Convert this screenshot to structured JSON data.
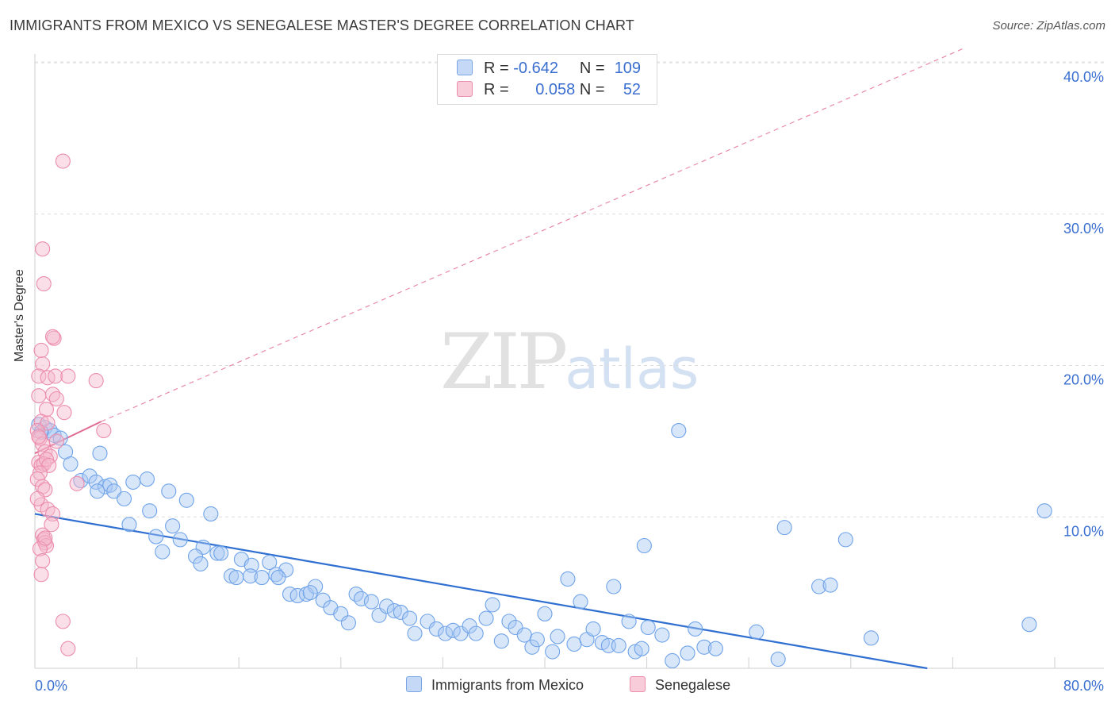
{
  "header": {
    "title": "IMMIGRANTS FROM MEXICO VS SENEGALESE MASTER'S DEGREE CORRELATION CHART",
    "source": "Source: ZipAtlas.com"
  },
  "watermark": {
    "zip": "ZIP",
    "atlas": "atlas"
  },
  "legend": {
    "rows": [
      {
        "r_label": "R =",
        "r_value": "-0.642",
        "n_label": "N =",
        "n_value": "109",
        "color": "#a9c8f5"
      },
      {
        "r_label": "R =",
        "r_value": "0.058",
        "n_label": "N =",
        "n_value": "52",
        "color": "#f5b8cb"
      }
    ]
  },
  "bottom_legend": {
    "items": [
      {
        "label": "Immigrants from Mexico",
        "color": "#a9c8f5"
      },
      {
        "label": "Senegalese",
        "color": "#f5b8cb"
      }
    ]
  },
  "chart_data": {
    "type": "scatter",
    "title": "IMMIGRANTS FROM MEXICO VS SENEGALESE MASTER'S DEGREE CORRELATION CHART",
    "xlabel": "",
    "ylabel": "Master's Degree",
    "xlim": [
      0,
      80
    ],
    "ylim": [
      0,
      41
    ],
    "x_tick_labels": [
      {
        "value": 0,
        "label": "0.0%"
      },
      {
        "value": 80,
        "label": "80.0%"
      }
    ],
    "y_tick_labels": [
      {
        "value": 10,
        "label": "10.0%"
      },
      {
        "value": 20,
        "label": "20.0%"
      },
      {
        "value": 30,
        "label": "30.0%"
      },
      {
        "value": 40,
        "label": "40.0%"
      }
    ],
    "series": [
      {
        "name": "Immigrants from Mexico",
        "color": "#6fa3e8",
        "fill": "#a9c8f5",
        "trend": {
          "x0": 0,
          "y0": 10.2,
          "x1": 70,
          "y1": 0,
          "style": "solid",
          "color": "#2f6fd1"
        },
        "points": [
          [
            0.3,
            16.1
          ],
          [
            0.8,
            15.9
          ],
          [
            1.2,
            15.7
          ],
          [
            1.5,
            15.4
          ],
          [
            0.5,
            15.6
          ],
          [
            2.0,
            15.2
          ],
          [
            2.4,
            14.3
          ],
          [
            2.8,
            13.5
          ],
          [
            5.1,
            14.2
          ],
          [
            3.6,
            12.4
          ],
          [
            4.3,
            12.7
          ],
          [
            4.8,
            12.3
          ],
          [
            5.5,
            12.0
          ],
          [
            5.9,
            12.1
          ],
          [
            6.2,
            11.7
          ],
          [
            7.0,
            11.2
          ],
          [
            7.7,
            12.3
          ],
          [
            8.8,
            12.5
          ],
          [
            10.5,
            11.7
          ],
          [
            11.9,
            11.1
          ],
          [
            4.9,
            11.7
          ],
          [
            9.0,
            10.4
          ],
          [
            13.8,
            10.2
          ],
          [
            7.4,
            9.5
          ],
          [
            10.8,
            9.4
          ],
          [
            9.5,
            8.7
          ],
          [
            11.4,
            8.5
          ],
          [
            13.2,
            8.0
          ],
          [
            10.0,
            7.7
          ],
          [
            12.6,
            7.4
          ],
          [
            13.0,
            6.9
          ],
          [
            14.3,
            7.6
          ],
          [
            15.4,
            6.1
          ],
          [
            16.2,
            7.2
          ],
          [
            17.0,
            6.8
          ],
          [
            18.4,
            7.0
          ],
          [
            19.7,
            6.5
          ],
          [
            15.8,
            6.0
          ],
          [
            16.9,
            6.1
          ],
          [
            17.8,
            6.0
          ],
          [
            18.9,
            6.2
          ],
          [
            19.1,
            6.0
          ],
          [
            20.0,
            4.9
          ],
          [
            20.6,
            4.8
          ],
          [
            21.3,
            4.9
          ],
          [
            22.0,
            5.4
          ],
          [
            21.6,
            5.0
          ],
          [
            22.6,
            4.5
          ],
          [
            23.2,
            4.0
          ],
          [
            24.0,
            3.6
          ],
          [
            24.6,
            3.0
          ],
          [
            25.2,
            4.9
          ],
          [
            25.6,
            4.6
          ],
          [
            26.4,
            4.4
          ],
          [
            27.0,
            3.5
          ],
          [
            27.6,
            4.1
          ],
          [
            28.2,
            3.8
          ],
          [
            28.7,
            3.7
          ],
          [
            29.4,
            3.3
          ],
          [
            29.8,
            2.3
          ],
          [
            30.8,
            3.1
          ],
          [
            31.5,
            2.6
          ],
          [
            32.2,
            2.3
          ],
          [
            32.8,
            2.5
          ],
          [
            33.4,
            2.3
          ],
          [
            34.1,
            2.8
          ],
          [
            34.6,
            2.3
          ],
          [
            35.4,
            3.3
          ],
          [
            35.9,
            4.2
          ],
          [
            36.6,
            1.8
          ],
          [
            37.2,
            3.1
          ],
          [
            37.7,
            2.7
          ],
          [
            38.4,
            2.2
          ],
          [
            39.0,
            1.4
          ],
          [
            39.4,
            1.9
          ],
          [
            40.0,
            3.6
          ],
          [
            40.6,
            1.1
          ],
          [
            41.0,
            2.1
          ],
          [
            41.8,
            5.9
          ],
          [
            42.3,
            1.6
          ],
          [
            42.8,
            4.4
          ],
          [
            43.3,
            1.9
          ],
          [
            43.8,
            2.6
          ],
          [
            44.5,
            1.7
          ],
          [
            45.0,
            1.5
          ],
          [
            45.4,
            5.4
          ],
          [
            45.8,
            1.5
          ],
          [
            46.6,
            3.1
          ],
          [
            47.1,
            1.1
          ],
          [
            47.6,
            1.3
          ],
          [
            48.1,
            2.7
          ],
          [
            47.8,
            8.1
          ],
          [
            49.2,
            2.2
          ],
          [
            50.0,
            0.5
          ],
          [
            50.5,
            15.7
          ],
          [
            51.2,
            1.0
          ],
          [
            51.8,
            2.6
          ],
          [
            52.5,
            1.4
          ],
          [
            53.4,
            1.3
          ],
          [
            56.6,
            2.4
          ],
          [
            58.3,
            0.6
          ],
          [
            58.8,
            9.3
          ],
          [
            61.5,
            5.4
          ],
          [
            62.4,
            5.5
          ],
          [
            63.6,
            8.5
          ],
          [
            65.6,
            2.0
          ],
          [
            78.0,
            2.9
          ],
          [
            79.2,
            10.4
          ],
          [
            14.6,
            7.6
          ]
        ]
      },
      {
        "name": "Senegalese",
        "color": "#ec8cab",
        "fill": "#f5b8cb",
        "trend_solid": {
          "x0": 0,
          "y0": 14.2,
          "x1": 5.2,
          "y1": 16.3,
          "style": "solid",
          "color": "#e06b92"
        },
        "trend_dashed": {
          "x0": 5.2,
          "y0": 16.3,
          "x1": 73,
          "y1": 41.0,
          "style": "dashed",
          "color": "#e88aa8"
        },
        "points": [
          [
            2.2,
            33.5
          ],
          [
            0.6,
            27.7
          ],
          [
            0.7,
            25.4
          ],
          [
            1.5,
            21.8
          ],
          [
            1.4,
            21.9
          ],
          [
            0.5,
            21.0
          ],
          [
            0.6,
            20.1
          ],
          [
            0.3,
            19.3
          ],
          [
            1.0,
            19.2
          ],
          [
            1.6,
            19.3
          ],
          [
            2.6,
            19.3
          ],
          [
            4.8,
            19.0
          ],
          [
            0.3,
            18.0
          ],
          [
            1.4,
            18.1
          ],
          [
            1.7,
            17.8
          ],
          [
            0.9,
            17.1
          ],
          [
            2.3,
            16.9
          ],
          [
            0.5,
            16.3
          ],
          [
            1.0,
            16.2
          ],
          [
            0.2,
            15.7
          ],
          [
            5.4,
            15.7
          ],
          [
            0.4,
            15.2
          ],
          [
            0.6,
            14.8
          ],
          [
            0.8,
            14.3
          ],
          [
            1.2,
            14.0
          ],
          [
            0.3,
            13.6
          ],
          [
            0.5,
            13.4
          ],
          [
            0.7,
            13.5
          ],
          [
            0.9,
            13.8
          ],
          [
            1.1,
            13.4
          ],
          [
            0.4,
            12.9
          ],
          [
            0.2,
            12.5
          ],
          [
            3.3,
            12.2
          ],
          [
            0.6,
            12.0
          ],
          [
            0.8,
            11.8
          ],
          [
            0.5,
            10.8
          ],
          [
            1.0,
            10.5
          ],
          [
            1.4,
            10.2
          ],
          [
            1.3,
            9.5
          ],
          [
            0.6,
            8.8
          ],
          [
            0.7,
            8.5
          ],
          [
            0.8,
            8.3
          ],
          [
            0.9,
            8.1
          ],
          [
            0.4,
            7.9
          ],
          [
            0.6,
            7.1
          ],
          [
            0.5,
            6.2
          ],
          [
            2.2,
            3.1
          ],
          [
            2.6,
            1.3
          ],
          [
            0.3,
            15.3
          ],
          [
            1.7,
            15.0
          ],
          [
            0.8,
            8.6
          ],
          [
            0.2,
            11.2
          ]
        ]
      }
    ]
  }
}
